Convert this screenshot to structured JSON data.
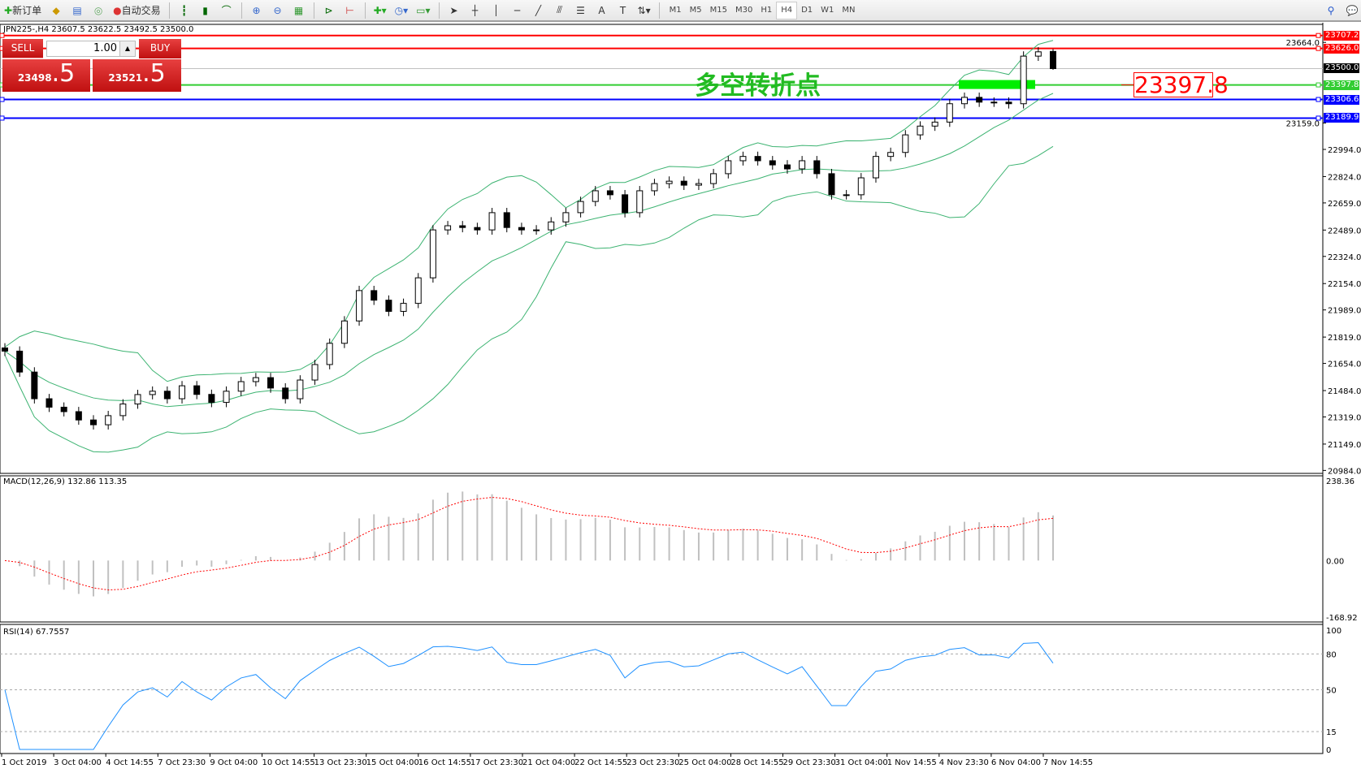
{
  "toolbar": {
    "new_order": "新订单",
    "auto_trade": "自动交易",
    "icons": [
      "new-order-icon",
      "strategy-icon",
      "market-watch-icon",
      "signals-icon",
      "auto-trade-icon",
      "bar-chart-icon",
      "candlestick-icon",
      "line-chart-icon",
      "zoom-in-icon",
      "zoom-out-icon",
      "tile-windows-icon",
      "chart-shift-icon",
      "autoscroll-icon",
      "indicators-icon",
      "periods-icon",
      "templates-icon",
      "cursor-icon",
      "crosshair-icon",
      "vertical-line-icon",
      "horizontal-line-icon",
      "trendline-icon",
      "equidistant-channel-icon",
      "fibonacci-icon",
      "text-icon",
      "text-label-icon",
      "arrows-icon",
      "search-icon",
      "chat-icon"
    ],
    "timeframes": [
      "M1",
      "M5",
      "M15",
      "M30",
      "H1",
      "H4",
      "D1",
      "W1",
      "MN"
    ],
    "active_timeframe": "H4"
  },
  "chart": {
    "header": "JPN225-,H4  23607.5 23622.5 23492.5 23500.0",
    "trade_panel": {
      "sell": "SELL",
      "buy": "BUY",
      "lot": "1.00",
      "bid_main": "23498",
      "bid_frac": ".5",
      "ask_main": "23521",
      "ask_frac": ".5"
    },
    "annotation_text": "多空转折点",
    "annotation_box": "23397.8",
    "colors": {
      "bull": "#ffffff",
      "bear": "#000000",
      "bands": "#3cb371",
      "macd_hist": "#c0c0c0",
      "macd_signal": "#ff0000",
      "rsi": "#1e90ff"
    }
  },
  "chart_data": {
    "type": "candlestick",
    "symbol": "JPN225-",
    "timeframe": "H4",
    "ylim": [
      20984.0,
      23707.2
    ],
    "yticks": [
      "23664.0",
      "23159.0",
      "22994.0",
      "22824.0",
      "22659.0",
      "22489.0",
      "22324.0",
      "22154.0",
      "21989.0",
      "21819.0",
      "21654.0",
      "21484.0",
      "21319.0",
      "21149.0",
      "20984.0"
    ],
    "ytick_values": [
      23664,
      23159,
      22994,
      22824,
      22659,
      22489,
      22324,
      22154,
      21989,
      21819,
      21654,
      21484,
      21319,
      21149,
      20984
    ],
    "xticks": [
      "1 Oct 2019",
      "3 Oct 04:00",
      "4 Oct 14:55",
      "7 Oct 23:30",
      "9 Oct 04:00",
      "10 Oct 14:55",
      "13 Oct 23:30",
      "15 Oct 04:00",
      "16 Oct 14:55",
      "17 Oct 23:30",
      "21 Oct 04:00",
      "22 Oct 14:55",
      "23 Oct 23:30",
      "25 Oct 04:00",
      "28 Oct 14:55",
      "29 Oct 23:30",
      "31 Oct 04:00",
      "1 Nov 14:55",
      "4 Nov 23:30",
      "6 Nov 04:00",
      "7 Nov 14:55"
    ],
    "close": [
      21731,
      21600,
      21433,
      21380,
      21352,
      21300,
      21270,
      21327,
      21400,
      21459,
      21480,
      21433,
      21514,
      21460,
      21410,
      21480,
      21540,
      21565,
      21500,
      21433,
      21550,
      21647,
      21780,
      21920,
      22110,
      22050,
      21980,
      22030,
      22190,
      22490,
      22516,
      22505,
      22490,
      22598,
      22505,
      22490,
      22490,
      22540,
      22598,
      22668,
      22735,
      22710,
      22598,
      22735,
      22780,
      22795,
      22770,
      22780,
      22842,
      22923,
      22950,
      22923,
      22897,
      22872,
      22923,
      22842,
      22710,
      22710,
      22816,
      22950,
      22975,
      23085,
      23140,
      23165,
      23280,
      23320,
      23290,
      23290,
      23280,
      23578,
      23605,
      23500
    ],
    "last_bar": {
      "open": 23607.5,
      "high": 23622.5,
      "low": 23492.5,
      "close": 23500.0
    },
    "hlines": [
      {
        "price": "23707.2",
        "value": 23707.2,
        "color": "#ff0000"
      },
      {
        "price": "23626.0",
        "value": 23626.0,
        "color": "#ff0000"
      },
      {
        "price": "23500.0",
        "value": 23500.0,
        "color": "#000000",
        "line": "#c0c0c0"
      },
      {
        "price": "23397.8",
        "value": 23397.8,
        "color": "#32cd32"
      },
      {
        "price": "23306.6",
        "value": 23306.6,
        "color": "#0000ff"
      },
      {
        "price": "23189.9",
        "value": 23189.9,
        "color": "#0000ff"
      }
    ],
    "macd": {
      "label": "MACD(12,26,9) 132.86 113.35",
      "ylim": [
        -168.92,
        238.36
      ],
      "ticks": [
        "238.36",
        "0.00",
        "-168.92"
      ],
      "tick_values": [
        238.36,
        0,
        -168.92
      ]
    },
    "rsi": {
      "label": "RSI(14) 67.7557",
      "ylim": [
        0,
        100
      ],
      "ticks": [
        "100",
        "80",
        "50",
        "15",
        "0"
      ],
      "tick_values": [
        100,
        80,
        50,
        15,
        0
      ],
      "levels": [
        80,
        50,
        15
      ]
    }
  }
}
